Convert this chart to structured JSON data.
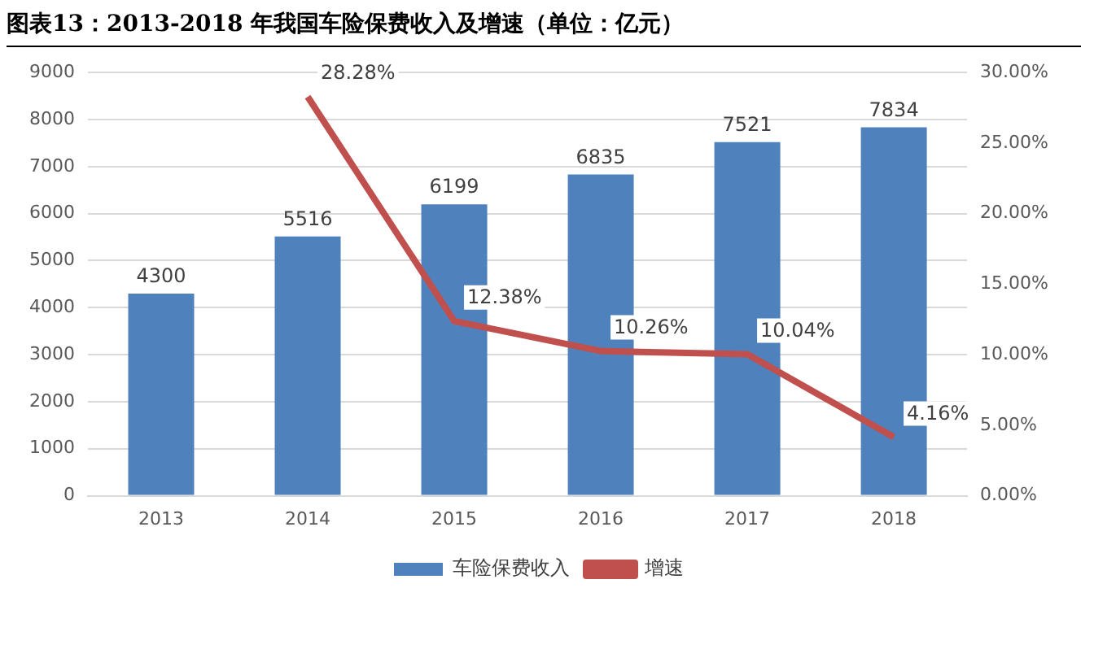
{
  "chart_data": {
    "type": "bar",
    "title": "图表13：2013-2018 年我国车险保费收入及增速（单位：亿元）",
    "categories": [
      "2013",
      "2014",
      "2015",
      "2016",
      "2017",
      "2018"
    ],
    "series": [
      {
        "name": "车险保费收入",
        "color": "#4f81bd",
        "values": [
          4300,
          5516,
          6199,
          6835,
          7521,
          7834
        ],
        "value_labels": [
          "4300",
          "5516",
          "6199",
          "6835",
          "7521",
          "7834"
        ]
      },
      {
        "name": "增速",
        "type": "line",
        "axis": "y2",
        "color": "#c0504d",
        "values": [
          null,
          28.28,
          12.38,
          10.26,
          10.04,
          4.16
        ],
        "value_labels": [
          null,
          "28.28%",
          "12.38%",
          "10.26%",
          "10.04%",
          "4.16%"
        ]
      }
    ],
    "ylim": [
      0,
      9000
    ],
    "yticks": [
      0,
      1000,
      2000,
      3000,
      4000,
      5000,
      6000,
      7000,
      8000,
      9000
    ],
    "y2lim": [
      0,
      30
    ],
    "y2ticks": [
      {
        "value": 0,
        "label": "0.00%"
      },
      {
        "value": 5,
        "label": "5.00%"
      },
      {
        "value": 10,
        "label": "10.00%"
      },
      {
        "value": 15,
        "label": "15.00%"
      },
      {
        "value": 20,
        "label": "20.00%"
      },
      {
        "value": 25,
        "label": "25.00%"
      },
      {
        "value": 30,
        "label": "30.00%"
      }
    ],
    "grid": "y",
    "legend": "bottom",
    "marker": "none",
    "line_style": "solid"
  }
}
